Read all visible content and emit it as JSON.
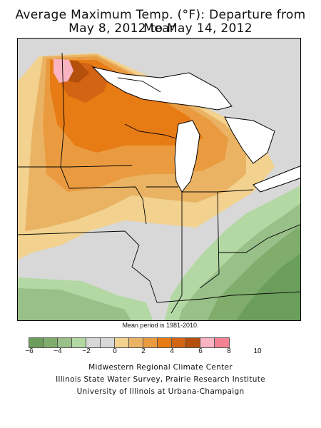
{
  "title": {
    "line1": "Average Maximum Temp. (°F): Departure from Mean",
    "line2": "May 8, 2012 to May 14, 2012"
  },
  "map": {
    "description_note": "Mean period is 1981-2010.",
    "region": "Midwestern United States",
    "colors": {
      "lake": "#ffffff",
      "border": "#000000"
    }
  },
  "legend": {
    "colors": [
      "#6b9e5c",
      "#80ad6c",
      "#98c088",
      "#b3d8a3",
      "#d8d8d8",
      "#d8d8d8",
      "#f2d28e",
      "#eab364",
      "#ea9b40",
      "#e77b14",
      "#d26414",
      "#b4500c",
      "#f9b3c1",
      "#f58292"
    ],
    "tick_labels": [
      "−6",
      "−4",
      "−2",
      "0",
      "2",
      "4",
      "6",
      "8",
      "10"
    ]
  },
  "credits": {
    "line1": "Midwestern Regional Climate Center",
    "line2": "Illinois State Water Survey, Prairie Research Institute",
    "line3": "University of Illinois at Urbana-Champaign"
  }
}
